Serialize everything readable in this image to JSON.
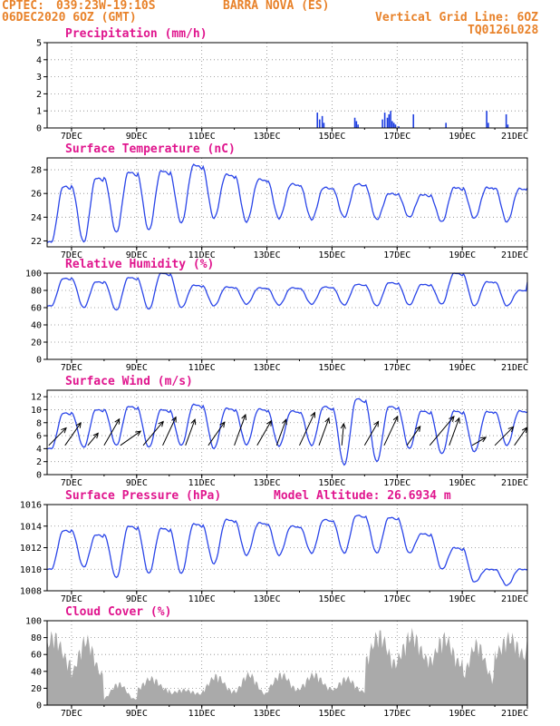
{
  "header": {
    "source": "CPTEC:",
    "location_coords": "039:23W-19:10S",
    "station": "BARRA NOVA (ES)",
    "run": "06DEC2020 6OZ (GMT)",
    "grid_note": "Vertical Grid Line: 6OZ",
    "code": "TQ0126L028"
  },
  "chart_data": [
    {
      "type": "bar",
      "title": "Precipitation (mm/h)",
      "ylim": [
        0,
        5
      ],
      "yticks": [
        "0",
        "1",
        "2",
        "3",
        "4",
        "5"
      ],
      "color": "#1f3fe0",
      "x_days": [
        14.55,
        14.62,
        14.7,
        14.75,
        15.7,
        15.75,
        15.8,
        16.55,
        16.62,
        16.7,
        16.75,
        16.8,
        16.85,
        16.9,
        16.95,
        17.05,
        17.5,
        18.5,
        19.75,
        19.8,
        20.35,
        20.4
      ],
      "values": [
        0.9,
        0.5,
        0.7,
        0.3,
        0.6,
        0.4,
        0.2,
        0.5,
        0.9,
        0.6,
        0.8,
        1.0,
        0.4,
        0.3,
        0.2,
        0.1,
        0.8,
        0.3,
        1.0,
        0.3,
        0.8,
        0.2
      ]
    },
    {
      "type": "line",
      "title": "Surface Temperature (nC)",
      "ylim": [
        21.5,
        29
      ],
      "yticks": [
        "22",
        "24",
        "26",
        "28"
      ],
      "color": "#2a45e8",
      "min_values": [
        21.9,
        21.9,
        22.7,
        22.9,
        23.5,
        23.9,
        23.6,
        23.9,
        23.8,
        24.0,
        23.8,
        24.0,
        23.6,
        23.9,
        23.6
      ],
      "max_values": [
        26.6,
        27.3,
        27.8,
        27.9,
        28.4,
        27.6,
        27.2,
        26.8,
        26.5,
        26.8,
        26.0,
        25.9,
        26.5,
        26.5,
        26.4
      ]
    },
    {
      "type": "line",
      "title": "Relative Humidity (%)",
      "ylim": [
        0,
        100
      ],
      "yticks": [
        "0",
        "20",
        "40",
        "60",
        "80",
        "100"
      ],
      "color": "#2a45e8",
      "min_values": [
        62,
        60,
        57,
        58,
        60,
        62,
        64,
        63,
        64,
        63,
        62,
        63,
        64,
        62,
        62
      ],
      "max_values": [
        94,
        90,
        95,
        100,
        86,
        84,
        83,
        83,
        84,
        87,
        89,
        87,
        100,
        90,
        80
      ]
    },
    {
      "type": "line",
      "title": "Surface Wind (m/s)",
      "ylim": [
        0,
        13
      ],
      "yticks": [
        "0",
        "2",
        "4",
        "6",
        "8",
        "10",
        "12"
      ],
      "color": "#2a45e8",
      "min_values": [
        4.0,
        4.2,
        4.5,
        4.2,
        4.5,
        4.0,
        4.6,
        4.4,
        4.5,
        1.5,
        2.0,
        4.0,
        3.2,
        3.5,
        4.5
      ],
      "max_values": [
        9.5,
        10.0,
        10.5,
        10.0,
        10.8,
        10.2,
        10.1,
        9.8,
        10.5,
        11.7,
        10.5,
        9.8,
        9.8,
        9.7,
        9.8
      ],
      "arrow_days": [
        6.3,
        6.8,
        7.5,
        8.0,
        8.5,
        9.2,
        9.8,
        10.5,
        11.2,
        12.0,
        12.7,
        13.3,
        14.0,
        14.6,
        15.3,
        16.0,
        16.6,
        17.3,
        18.0,
        18.6,
        19.3,
        20.0,
        20.6
      ],
      "arrow_dirs_deg": [
        225,
        235,
        230,
        240,
        215,
        230,
        245,
        250,
        235,
        250,
        240,
        250,
        245,
        250,
        265,
        240,
        245,
        235,
        230,
        250,
        210,
        225,
        235
      ],
      "arrow_speeds": [
        3.4,
        3.8,
        2.2,
        4.2,
        3.4,
        4.3,
        4.3,
        3.8,
        3.9,
        4.5,
        3.9,
        3.8,
        5.0,
        4.0,
        3.0,
        3.8,
        4.4,
        3.2,
        5.2,
        4.0,
        2.2,
        3.6,
        3.0
      ]
    },
    {
      "type": "line",
      "title": "Surface Pressure (hPa)",
      "annotation": "Model Altitude: 26.6934 m",
      "ylim": [
        1008,
        1016
      ],
      "yticks": [
        "1008",
        "1010",
        "1012",
        "1014",
        "1016"
      ],
      "color": "#2a45e8",
      "min_values": [
        1010.0,
        1010.2,
        1009.2,
        1009.6,
        1009.6,
        1010.5,
        1011.3,
        1011.3,
        1011.5,
        1011.5,
        1011.5,
        1011.5,
        1010.0,
        1008.8,
        1008.5
      ],
      "max_values": [
        1013.6,
        1013.2,
        1014.0,
        1013.8,
        1014.2,
        1014.6,
        1014.3,
        1014.0,
        1014.6,
        1015.0,
        1014.8,
        1013.3,
        1012.0,
        1010.0,
        1010.0
      ]
    },
    {
      "type": "area",
      "title": "Cloud Cover (%)",
      "ylim": [
        0,
        100
      ],
      "yticks": [
        "0",
        "20",
        "40",
        "60",
        "80",
        "100"
      ],
      "color": "#aaaaaa",
      "day_base": [
        55,
        40,
        8,
        20,
        15,
        18,
        15,
        20,
        22,
        18,
        55,
        60,
        55,
        35,
        65,
        88
      ],
      "day_peak": [
        90,
        85,
        28,
        35,
        20,
        38,
        40,
        40,
        40,
        35,
        92,
        92,
        88,
        80,
        88,
        96
      ]
    }
  ],
  "xaxis": {
    "days": [
      7,
      9,
      11,
      13,
      15,
      17,
      19,
      21
    ],
    "labels": [
      "7DEC",
      "9DEC",
      "11DEC",
      "13DEC",
      "15DEC",
      "17DEC",
      "19DEC",
      "21DEC"
    ],
    "start_day": 6.25,
    "end_day": 21.0
  }
}
